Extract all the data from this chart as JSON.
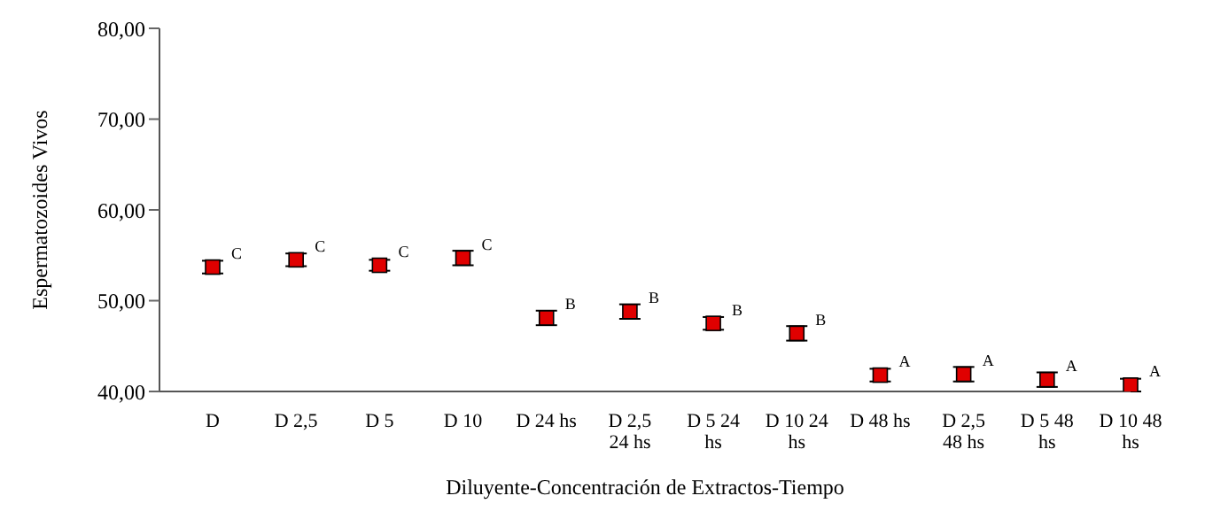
{
  "chart_data": {
    "type": "scatter",
    "xlabel": "Diluyente-Concentración de Extractos-Tiempo",
    "ylabel": "Espermatozoides Vivos",
    "categories": [
      "D",
      "D 2,5",
      "D 5",
      "D 10",
      "D 24 hs",
      "D 2,5 24 hs",
      "D 5 24 hs",
      "D 10 24 hs",
      "D 48 hs",
      "D 2,5 48 hs",
      "D 5 48 hs",
      "D 10 48 hs"
    ],
    "series": [
      {
        "color": "#e00000",
        "values": [
          53.7,
          54.5,
          53.9,
          54.7,
          48.1,
          48.8,
          47.5,
          46.4,
          41.8,
          41.9,
          41.3,
          40.7
        ],
        "errors": [
          0.7,
          0.7,
          0.6,
          0.8,
          0.8,
          0.8,
          0.7,
          0.8,
          0.7,
          0.8,
          0.8,
          0.7
        ],
        "value_labels": [
          "C",
          "C",
          "C",
          "C",
          "B",
          "B",
          "B",
          "B",
          "A",
          "A",
          "A",
          "A"
        ]
      }
    ],
    "ylim": [
      40,
      80
    ],
    "yticks": [
      {
        "value": 40,
        "label": "40,00"
      },
      {
        "value": 50,
        "label": "50,00"
      },
      {
        "value": 60,
        "label": "60,00"
      },
      {
        "value": 70,
        "label": "70,00"
      },
      {
        "value": 80,
        "label": "80,00"
      }
    ],
    "marker": "square",
    "grid": false,
    "legend": false
  }
}
